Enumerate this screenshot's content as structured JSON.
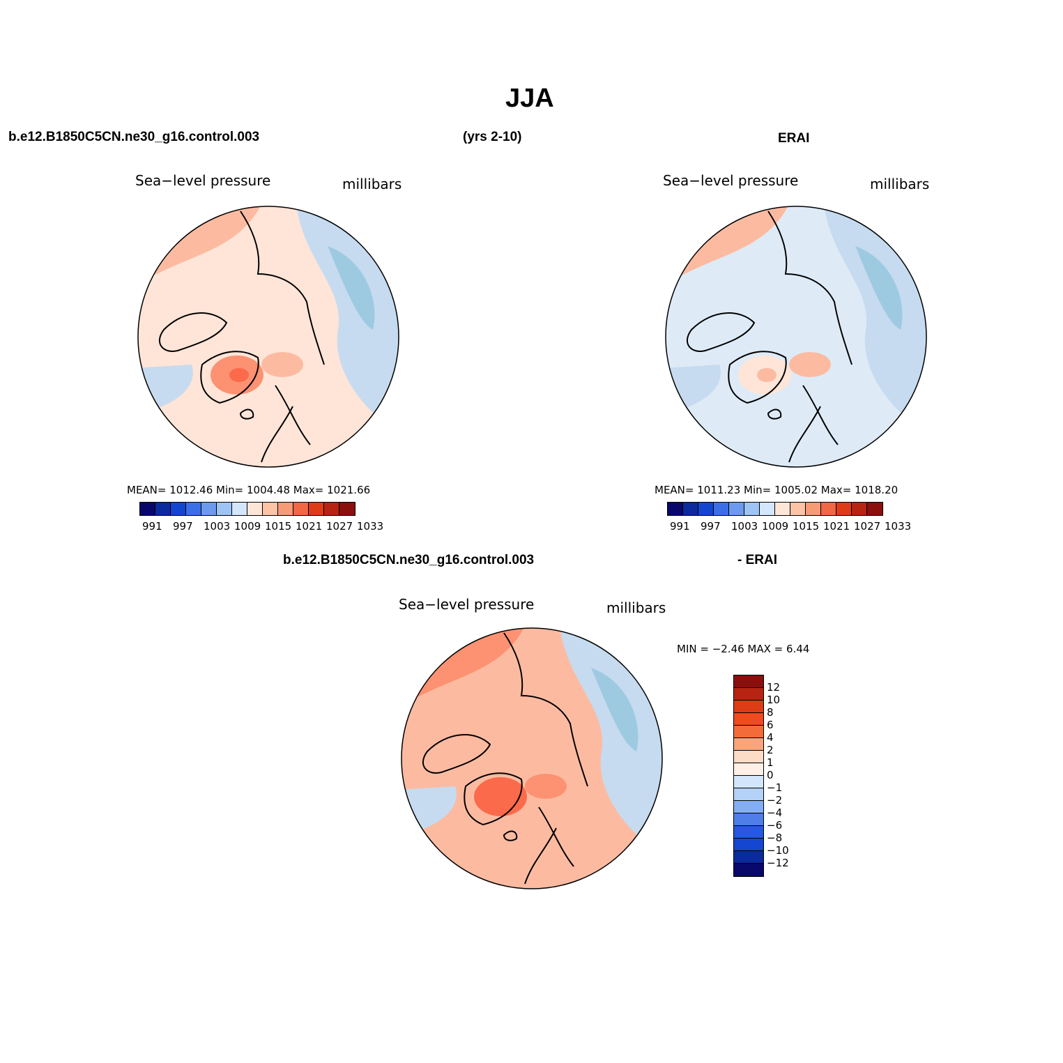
{
  "figure": {
    "title": "JJA",
    "subtitle_left": "b.e12.B1850C5CN.ne30_g16.control.003",
    "subtitle_mid": "(yrs 2-10)",
    "subtitle_right": "ERAI",
    "diff_left": "b.e12.B1850C5CN.ne30_g16.control.003",
    "diff_right": "- ERAI"
  },
  "panels": [
    {
      "id": "model",
      "variable": "Sea−level pressure",
      "units": "millibars",
      "stats": "MEAN= 1012.46   Min= 1004.48   Max= 1021.66",
      "field_colors": {
        "base": "#fee5d8",
        "north": "#fcbba1",
        "east": "#c6dbef",
        "southeast": "#9ecae1",
        "peak": "#fc9272",
        "deep": "#fb6a4a"
      }
    },
    {
      "id": "erai",
      "variable": "Sea−level pressure",
      "units": "millibars",
      "stats": "MEAN= 1011.23   Min= 1005.02   Max= 1018.20",
      "field_colors": {
        "base": "#deebf7",
        "north": "#fcbba1",
        "east": "#c6dbef",
        "southeast": "#9ecae1",
        "peak": "#fee5d8",
        "deep": "#fcbba1"
      }
    },
    {
      "id": "diff",
      "variable": "Sea−level pressure",
      "units": "millibars",
      "stats": "MIN =  −2.46 MAX =    6.44",
      "field_colors": {
        "base": "#fcbba1",
        "north": "#fc9272",
        "east": "#c6dbef",
        "southeast": "#9ecae1",
        "peak": "#fb6a4a",
        "deep": "#fb6a4a"
      }
    }
  ],
  "colorbar_main": {
    "colors": [
      "#08086b",
      "#0b2a9e",
      "#1246d1",
      "#3a6fe8",
      "#6c9af0",
      "#9ec3f5",
      "#d4e6fb",
      "#fde6d8",
      "#fcc3a5",
      "#f79a76",
      "#f26744",
      "#de3b17",
      "#b82412",
      "#8a0f0d"
    ],
    "labels": [
      "991",
      "997",
      "1003",
      "1009",
      "1015",
      "1021",
      "1027",
      "1033"
    ]
  },
  "colorbar_diff": {
    "colors": [
      "#8a0f0d",
      "#b82412",
      "#de3b17",
      "#f04a1e",
      "#f46b3a",
      "#f8a57c",
      "#fcdcc6",
      "#fef0e6",
      "#d4e6fb",
      "#b4d2f7",
      "#84aef3",
      "#4f7ee9",
      "#2659dd",
      "#1446d1",
      "#0b2a9e",
      "#08086b"
    ],
    "labels": [
      "12",
      "10",
      "8",
      "6",
      "4",
      "2",
      "1",
      "0",
      "−1",
      "−2",
      "−4",
      "−6",
      "−8",
      "−10",
      "−12"
    ]
  }
}
